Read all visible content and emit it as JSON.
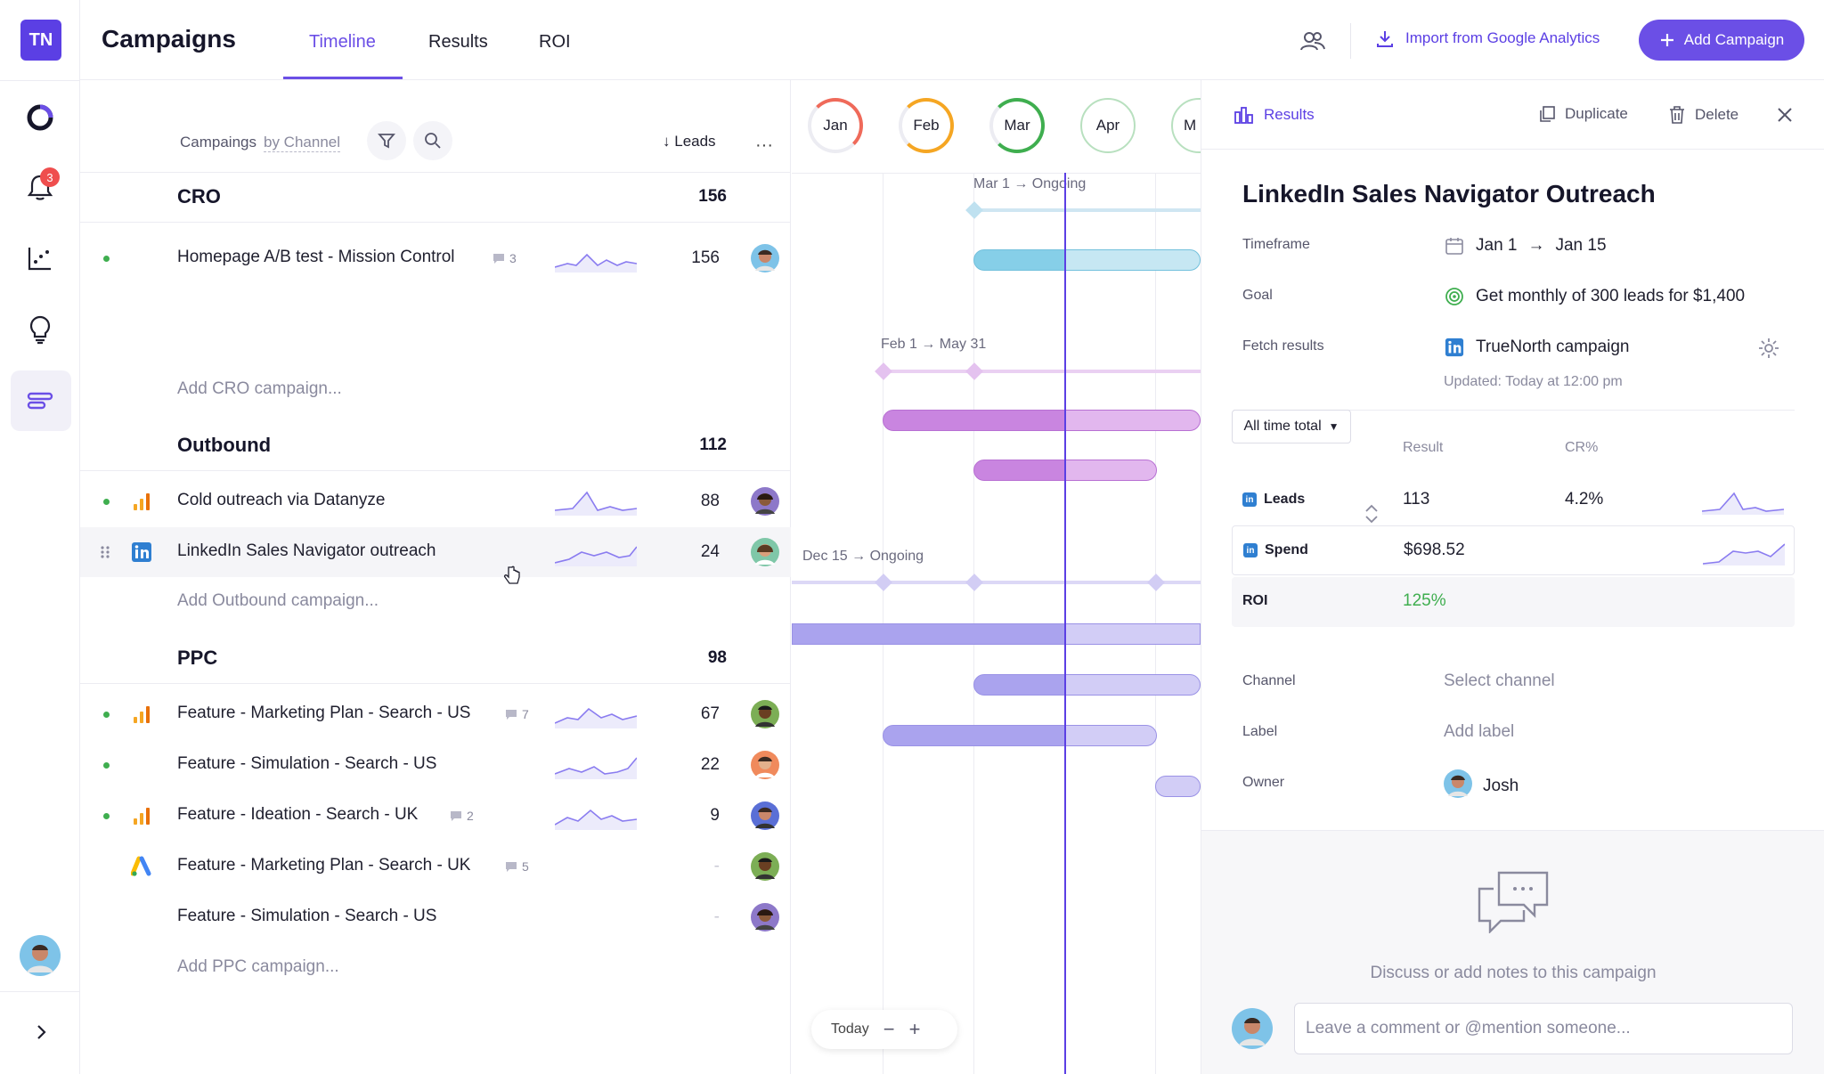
{
  "app": {
    "logo": "TN",
    "page_title": "Campaigns"
  },
  "tabs": [
    {
      "label": "Timeline",
      "active": true
    },
    {
      "label": "Results"
    },
    {
      "label": "ROI"
    }
  ],
  "header": {
    "import_label": "Import from Google Analytics",
    "add_label": "Add Campaign"
  },
  "sidebar": {
    "notifications_count": "3",
    "icons": [
      "ring-logo-icon",
      "bell-icon",
      "analytics-icon",
      "lightbulb-icon",
      "campaigns-icon"
    ]
  },
  "list": {
    "title": "Campaings",
    "group_by": "by Channel",
    "sort_label": "Leads",
    "groups": [
      {
        "name": "CRO",
        "total": "156",
        "add_label": "Add CRO campaign...",
        "rows": [
          {
            "name": "Homepage A/B test - Mission Control",
            "comments": "3",
            "value": "156",
            "channel": "",
            "status": "active"
          }
        ]
      },
      {
        "name": "Outbound",
        "total": "112",
        "add_label": "Add Outbound campaign...",
        "rows": [
          {
            "name": "Cold outreach via Datanyze",
            "value": "88",
            "channel": "analytics",
            "status": "active"
          },
          {
            "name": "LinkedIn Sales Navigator outreach",
            "value": "24",
            "channel": "linkedin",
            "status": "selected"
          }
        ]
      },
      {
        "name": "PPC",
        "total": "98",
        "add_label": "Add PPC campaign...",
        "rows": [
          {
            "name": "Feature - Marketing Plan - Search - US",
            "comments": "7",
            "value": "67",
            "channel": "analytics",
            "status": "active"
          },
          {
            "name": "Feature - Simulation - Search - US",
            "value": "22",
            "channel": "",
            "status": "active"
          },
          {
            "name": "Feature - Ideation - Search - UK",
            "comments": "2",
            "value": "9",
            "channel": "analytics",
            "status": "active"
          },
          {
            "name": "Feature - Marketing Plan - Search - UK",
            "comments": "5",
            "value": "-",
            "channel": "google-ads",
            "status": ""
          },
          {
            "name": "Feature - Simulation - Search - US",
            "value": "-",
            "channel": "",
            "status": ""
          }
        ]
      }
    ]
  },
  "timeline": {
    "months": [
      "Jan",
      "Feb",
      "Mar",
      "Apr",
      "M"
    ],
    "labels": {
      "cro": "Mar 1 → Ongoing",
      "outbound": "Feb 1 → May 31",
      "ppc": "Dec 15 → Ongoing"
    },
    "today_label": "Today"
  },
  "panel": {
    "results_tab": "Results",
    "duplicate": "Duplicate",
    "delete": "Delete",
    "title": "LinkedIn Sales Navigator Outreach",
    "fields": {
      "timeframe_label": "Timeframe",
      "timeframe_start": "Jan 1",
      "timeframe_arrow": "→",
      "timeframe_end": "Jan 15",
      "goal_label": "Goal",
      "goal": "Get monthly of 300 leads for $1,400",
      "fetch_label": "Fetch results",
      "fetch": "TrueNorth campaign",
      "updated": "Updated: Today at 12:00 pm"
    },
    "range": "All time total",
    "columns": {
      "result": "Result",
      "cr": "CR%"
    },
    "metrics": [
      {
        "name": "Leads",
        "result": "113",
        "cr": "4.2%"
      },
      {
        "name": "Spend",
        "result": "$698.52",
        "cr": ""
      },
      {
        "name": "ROI",
        "result": "125%",
        "cr": ""
      }
    ],
    "meta": {
      "channel_label": "Channel",
      "channel": "Select channel",
      "label_label": "Label",
      "label": "Add label",
      "owner_label": "Owner",
      "owner": "Josh"
    },
    "discuss": "Discuss or add notes to this campaign",
    "comment_placeholder": "Leave a comment or @mention someone..."
  },
  "colors": {
    "accent": "#6b4fe6",
    "green": "#3fae4f",
    "linkedin": "#2f7fd1"
  }
}
